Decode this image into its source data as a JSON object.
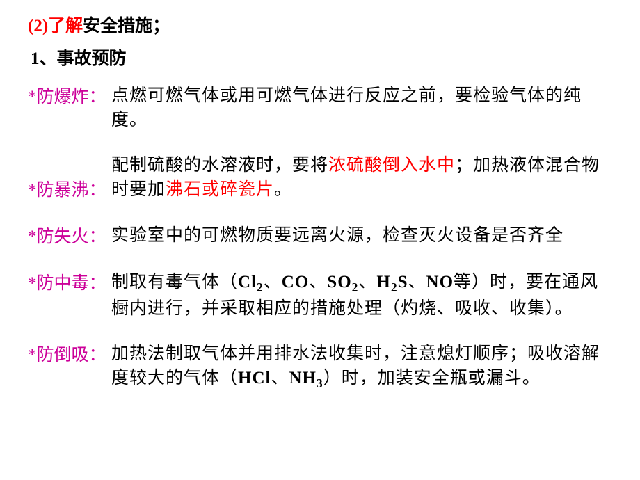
{
  "title": {
    "num": "(2)",
    "red": "了解",
    "black": "安全措施；"
  },
  "subtitle": "1、事故预防",
  "rows": [
    {
      "label": "*防爆炸：",
      "content": [
        {
          "text": "点燃可燃气体或用可燃气体进行反应之前，要检验气体的纯度。",
          "style": "black"
        }
      ],
      "labelOffset": 0
    },
    {
      "label": "*防暴沸：",
      "content": [
        {
          "text": "配制硫酸的水溶液时，要将",
          "style": "black"
        },
        {
          "text": "浓硫酸倒入水中",
          "style": "highlight"
        },
        {
          "text": "；加热液体混合物时要加",
          "style": "black"
        },
        {
          "text": "沸石或碎瓷片",
          "style": "highlight"
        },
        {
          "text": "。",
          "style": "black"
        }
      ],
      "labelOffset": 36
    },
    {
      "label": "*防失火：",
      "content": [
        {
          "text": "实验室中的可燃物质要远离火源，检查灭火设备是否齐全",
          "style": "black"
        }
      ],
      "labelOffset": 0
    },
    {
      "label": "*防中毒：",
      "content": [
        {
          "text": "制取有毒气体（",
          "style": "black"
        },
        {
          "text": "Cl",
          "style": "bold"
        },
        {
          "text": "2",
          "style": "sub"
        },
        {
          "text": "、",
          "style": "black"
        },
        {
          "text": "CO",
          "style": "bold"
        },
        {
          "text": "、",
          "style": "black"
        },
        {
          "text": "SO",
          "style": "bold"
        },
        {
          "text": "2",
          "style": "sub"
        },
        {
          "text": "、",
          "style": "black"
        },
        {
          "text": "H",
          "style": "bold"
        },
        {
          "text": "2",
          "style": "sub"
        },
        {
          "text": "S",
          "style": "bold"
        },
        {
          "text": "、",
          "style": "black"
        },
        {
          "text": "NO",
          "style": "bold"
        },
        {
          "text": "等）时，要在通风橱内进行，并采取相应的措施处理（灼烧、吸收、收集）。",
          "style": "black"
        }
      ],
      "labelOffset": 0
    },
    {
      "label": "*防倒吸：",
      "content": [
        {
          "text": "加热法制取气体并用排水法收集时，注意熄灯顺序；吸收溶解度较大的气体（",
          "style": "black"
        },
        {
          "text": "HCl",
          "style": "bold"
        },
        {
          "text": "、",
          "style": "black"
        },
        {
          "text": "NH",
          "style": "bold"
        },
        {
          "text": "3",
          "style": "sub"
        },
        {
          "text": "）时，加装安全瓶或漏斗。",
          "style": "black"
        }
      ],
      "labelOffset": 0
    }
  ],
  "colors": {
    "red": "#ff0000",
    "purple": "#cc0099",
    "black": "#000000",
    "background": "#ffffff"
  }
}
